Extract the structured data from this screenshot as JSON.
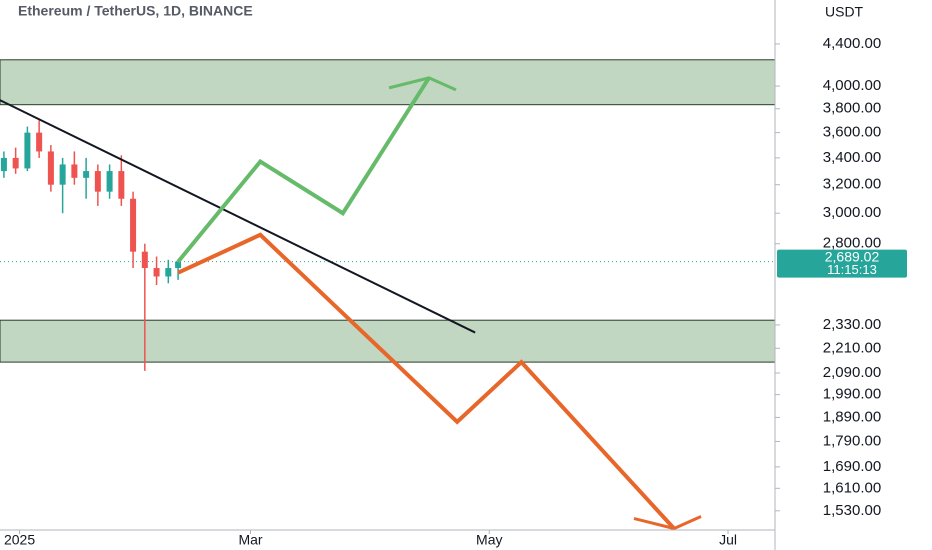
{
  "chart_data": {
    "type": "candlestick",
    "title": "Ethereum / TetherUS, 1D, BINANCE",
    "y_axis_label": "USDT",
    "log_scale": true,
    "ylim": [
      1465,
      4860
    ],
    "yticks": [
      {
        "value": 4400,
        "label": "4,400.00"
      },
      {
        "value": 4000,
        "label": "4,000.00"
      },
      {
        "value": 3800,
        "label": "3,800.00"
      },
      {
        "value": 3600,
        "label": "3,600.00"
      },
      {
        "value": 3400,
        "label": "3,400.00"
      },
      {
        "value": 3200,
        "label": "3,200.00"
      },
      {
        "value": 3000,
        "label": "3,000.00"
      },
      {
        "value": 2800,
        "label": "2,800.00"
      },
      {
        "value": 2330,
        "label": "2,330.00"
      },
      {
        "value": 2210,
        "label": "2,210.00"
      },
      {
        "value": 2090,
        "label": "2,090.00"
      },
      {
        "value": 1990,
        "label": "1,990.00"
      },
      {
        "value": 1890,
        "label": "1,890.00"
      },
      {
        "value": 1790,
        "label": "1,790.00"
      },
      {
        "value": 1690,
        "label": "1,690.00"
      },
      {
        "value": 1610,
        "label": "1,610.00"
      },
      {
        "value": 1530,
        "label": "1,530.00"
      }
    ],
    "xlim": [
      -5,
      193
    ],
    "xticks": [
      {
        "value": 0,
        "label": "2025"
      },
      {
        "value": 59,
        "label": "Mar"
      },
      {
        "value": 120,
        "label": "May"
      },
      {
        "value": 181,
        "label": "Jul"
      }
    ],
    "up_color": "#26a69a",
    "down_color": "#ef5350",
    "candles": {
      "x": [
        -4,
        -1,
        2,
        5,
        8,
        11,
        14,
        17,
        20,
        23,
        26,
        29,
        32,
        35,
        38,
        40.5
      ],
      "open": [
        3300,
        3400,
        3320,
        3600,
        3450,
        3200,
        3350,
        3250,
        3300,
        3150,
        3300,
        3100,
        2750,
        2650,
        2600,
        2650
      ],
      "high": [
        3450,
        3480,
        3650,
        3700,
        3500,
        3400,
        3450,
        3400,
        3350,
        3350,
        3420,
        3150,
        2800,
        2720,
        2700,
        2700
      ],
      "low": [
        3250,
        3280,
        3300,
        3400,
        3150,
        3000,
        3200,
        3100,
        3050,
        3100,
        3050,
        2650,
        2100,
        2550,
        2560,
        2580
      ],
      "close": [
        3400,
        3320,
        3600,
        3450,
        3200,
        3350,
        3250,
        3300,
        3150,
        3300,
        3100,
        2750,
        2650,
        2600,
        2650,
        2689.02
      ]
    },
    "last_price": {
      "value": 2689.02,
      "label": "2,689.02",
      "countdown": "11:15:13",
      "color": "#26a69a"
    },
    "zones": [
      {
        "low": 3835,
        "high": 4245,
        "color": "#4c8c4c"
      },
      {
        "low": 2142,
        "high": 2355,
        "color": "#4c8c4c"
      }
    ],
    "trendline": {
      "x": [
        -5.1,
        116.4
      ],
      "values": [
        3876,
        2290
      ],
      "color": "#131722"
    },
    "overlays": [
      {
        "color": "#66bb6a",
        "x": [
          40.5,
          61.5,
          82.6,
          104.6
        ],
        "values": [
          2688,
          3372,
          3000,
          4075
        ]
      },
      {
        "color": "#e8662a",
        "x": [
          40.5,
          61.5,
          111.8,
          128.2,
          167.2
        ],
        "values": [
          2622,
          2857,
          1871,
          2142,
          1470
        ]
      }
    ]
  }
}
